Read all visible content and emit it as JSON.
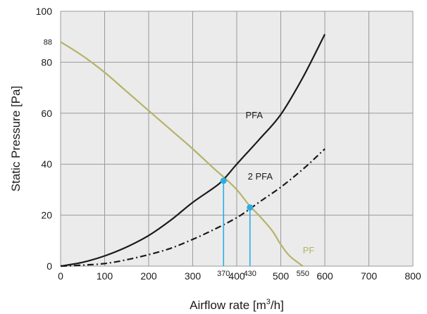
{
  "chart_data": {
    "type": "line",
    "xlabel": "Airflow rate [m",
    "xlabel_sup": "3",
    "xlabel_suffix": "/h]",
    "ylabel": "Static Pressure [Pa]",
    "xlim": [
      0,
      800
    ],
    "ylim": [
      0,
      100
    ],
    "x_ticks": [
      0,
      100,
      200,
      300,
      400,
      500,
      600,
      700,
      800
    ],
    "y_ticks": [
      0,
      20,
      40,
      60,
      80,
      100
    ],
    "grid": true,
    "y_annotation": {
      "value": 88,
      "label": "88"
    },
    "series": [
      {
        "name": "PF",
        "style": "solid",
        "color": "#b5b36a",
        "x": [
          0,
          50,
          100,
          150,
          200,
          250,
          300,
          350,
          370,
          400,
          430,
          450,
          480,
          500,
          520,
          550
        ],
        "y": [
          88,
          82.5,
          76,
          68.5,
          61,
          53.5,
          46,
          38,
          35,
          30,
          23.5,
          20,
          14,
          8.5,
          4,
          0
        ]
      },
      {
        "name": "PFA",
        "style": "solid",
        "color": "#1a1a1a",
        "x": [
          0,
          50,
          100,
          150,
          200,
          250,
          300,
          350,
          370,
          400,
          450,
          500,
          550,
          600
        ],
        "y": [
          0,
          1.5,
          4,
          7.5,
          12,
          18,
          25,
          31,
          34,
          40,
          49.5,
          59.5,
          74,
          91
        ]
      },
      {
        "name": "2 PFA",
        "style": "dashdot",
        "color": "#1a1a1a",
        "x": [
          0,
          50,
          100,
          150,
          200,
          250,
          300,
          350,
          400,
          430,
          450,
          500,
          550,
          600
        ],
        "y": [
          0,
          0.4,
          1,
          2.5,
          4.5,
          7,
          10.5,
          14.5,
          19,
          22.5,
          25,
          31,
          38,
          46
        ]
      }
    ],
    "operating_points": [
      {
        "x": 370,
        "y": 33.5,
        "label": "370"
      },
      {
        "x": 430,
        "y": 23,
        "label": "430"
      }
    ],
    "x_annotations": [
      {
        "x": 550,
        "label": "550"
      }
    ],
    "colors": {
      "grid": "#9a9a9a",
      "plot_bg": "#ebebeb",
      "marker": "#29aee4"
    }
  }
}
